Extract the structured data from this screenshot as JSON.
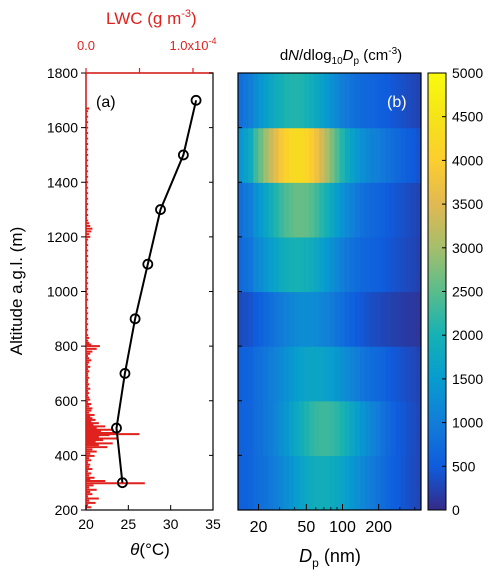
{
  "chart_data": [
    {
      "type": "line",
      "panel_label": "(a)",
      "ylabel": "Altitude a.g.l. (m)",
      "ylim": [
        200,
        1800
      ],
      "yticks": [
        200,
        400,
        600,
        800,
        1000,
        1200,
        1400,
        1600,
        1800
      ],
      "xlabel_symbol": "θ",
      "xlabel_unit": "(°C)",
      "xlim": [
        20,
        35
      ],
      "xticks": [
        20,
        25,
        30,
        35
      ],
      "top_axis": {
        "label_prefix": "LWC (g m",
        "label_exp": "-3",
        "label_suffix": ")",
        "tick_min_label": "0.0",
        "tick_max_label": "1.0x10",
        "tick_max_exp": "-4",
        "color": "#e0221f"
      },
      "series": [
        {
          "color": "#000000",
          "marker": "open-circle",
          "x": [
            24.3,
            23.6,
            24.6,
            25.8,
            27.3,
            28.8,
            31.5,
            33.0
          ],
          "y": [
            300,
            500,
            700,
            900,
            1100,
            1300,
            1500,
            1700
          ]
        },
        {
          "color": "#e0221f",
          "kind": "horizontal-spikes",
          "units": "fraction of LWC axis (max 1.0e-4)",
          "y": [
            210,
            218,
            226,
            234,
            242,
            250,
            258,
            266,
            274,
            282,
            290,
            298,
            306,
            312,
            318,
            326,
            334,
            342,
            350,
            358,
            366,
            374,
            382,
            390,
            398,
            406,
            414,
            422,
            430,
            438,
            444,
            450,
            456,
            462,
            468,
            474,
            478,
            482,
            488,
            494,
            500,
            506,
            512,
            518,
            524,
            530,
            536,
            542,
            548,
            556,
            564,
            572,
            580,
            588,
            596,
            604,
            612,
            620,
            628,
            636,
            644,
            652,
            660,
            668,
            676,
            684,
            692,
            700,
            708,
            716,
            724,
            732,
            740,
            748,
            756,
            764,
            772,
            780,
            790,
            800,
            806,
            812,
            820,
            830,
            840,
            850,
            860,
            870,
            880,
            890,
            900,
            910,
            920,
            930,
            940,
            950,
            960,
            970,
            980,
            990,
            1000,
            1010,
            1020,
            1030,
            1040,
            1050,
            1060,
            1070,
            1080,
            1090,
            1100,
            1110,
            1120,
            1130,
            1140,
            1150,
            1160,
            1170,
            1180,
            1190,
            1200,
            1210,
            1220,
            1230,
            1240,
            1250,
            1260,
            1270,
            1280,
            1290,
            1300,
            1310,
            1320,
            1330,
            1340,
            1350,
            1360,
            1370,
            1380,
            1390,
            1400,
            1410,
            1420,
            1430,
            1440,
            1450,
            1460,
            1470,
            1480,
            1490,
            1500,
            1510,
            1520,
            1530,
            1540,
            1550,
            1560,
            1570,
            1580,
            1590,
            1600,
            1610,
            1620,
            1630,
            1640,
            1650,
            1660,
            1670
          ],
          "lwc": [
            0.05,
            0.02,
            0.09,
            0.03,
            0.12,
            0.02,
            0.06,
            0.04,
            0.1,
            0.03,
            0.07,
            0.55,
            0.18,
            0.04,
            0.08,
            0.03,
            0.05,
            0.02,
            0.06,
            0.03,
            0.04,
            0.02,
            0.05,
            0.03,
            0.08,
            0.04,
            0.1,
            0.06,
            0.2,
            0.12,
            0.25,
            0.09,
            0.16,
            0.3,
            0.12,
            0.22,
            0.5,
            0.3,
            0.14,
            0.26,
            0.1,
            0.18,
            0.07,
            0.12,
            0.05,
            0.09,
            0.06,
            0.04,
            0.08,
            0.03,
            0.05,
            0.06,
            0.03,
            0.05,
            0.02,
            0.04,
            0.03,
            0.02,
            0.03,
            0.02,
            0.04,
            0.02,
            0.03,
            0.02,
            0.02,
            0.03,
            0.02,
            0.02,
            0.03,
            0.02,
            0.04,
            0.02,
            0.03,
            0.05,
            0.03,
            0.02,
            0.04,
            0.06,
            0.1,
            0.13,
            0.05,
            0.03,
            0.02,
            0.03,
            0.02,
            0.01,
            0.02,
            0.01,
            0.02,
            0.01,
            0.02,
            0.01,
            0.02,
            0.01,
            0.02,
            0.01,
            0.01,
            0.02,
            0.01,
            0.02,
            0.01,
            0.02,
            0.01,
            0.02,
            0.01,
            0.02,
            0.01,
            0.02,
            0.01,
            0.02,
            0.01,
            0.02,
            0.01,
            0.02,
            0.01,
            0.02,
            0.01,
            0.02,
            0.01,
            0.02,
            0.04,
            0.03,
            0.05,
            0.06,
            0.04,
            0.03,
            0.02,
            0.01,
            0.02,
            0.01,
            0.02,
            0.01,
            0.02,
            0.01,
            0.02,
            0.01,
            0.02,
            0.01,
            0.02,
            0.01,
            0.02,
            0.01,
            0.02,
            0.01,
            0.02,
            0.01,
            0.02,
            0.01,
            0.02,
            0.01,
            0.02,
            0.01,
            0.02,
            0.01,
            0.02,
            0.01,
            0.02,
            0.01,
            0.02,
            0.01,
            0.02,
            0.01,
            0.02,
            0.01,
            0.02,
            0.01,
            0.02,
            0.03
          ]
        }
      ]
    },
    {
      "type": "heatmap",
      "panel_label": "(b)",
      "title_parts": [
        "d",
        "N",
        "/dlog",
        "10",
        "D",
        "p",
        " (cm",
        "-3",
        ")"
      ],
      "xlabel_main": "D",
      "xlabel_sub": "p",
      "xlabel_unit": " (nm)",
      "x_scale": "log",
      "xlim": [
        13.5,
        450
      ],
      "xticks": [
        20,
        50,
        100,
        200
      ],
      "ylim": [
        200,
        1800
      ],
      "altitude_bins": [
        [
          200,
          400
        ],
        [
          400,
          600
        ],
        [
          600,
          800
        ],
        [
          800,
          1000
        ],
        [
          1000,
          1200
        ],
        [
          1200,
          1400
        ],
        [
          1400,
          1600
        ],
        [
          1600,
          1800
        ]
      ],
      "peak_diameter_nm": [
        68,
        70,
        58,
        50,
        42,
        44,
        42,
        40
      ],
      "peak_value": [
        1900,
        2300,
        1700,
        1250,
        2000,
        2600,
        4300,
        2100
      ],
      "background_value": [
        600,
        600,
        550,
        250,
        500,
        550,
        900,
        550
      ],
      "colorbar": {
        "min": 0,
        "max": 5000,
        "ticks": [
          0,
          500,
          1000,
          1500,
          2000,
          2500,
          3000,
          3500,
          4000,
          4500,
          5000
        ],
        "colormap": "parula"
      }
    }
  ]
}
